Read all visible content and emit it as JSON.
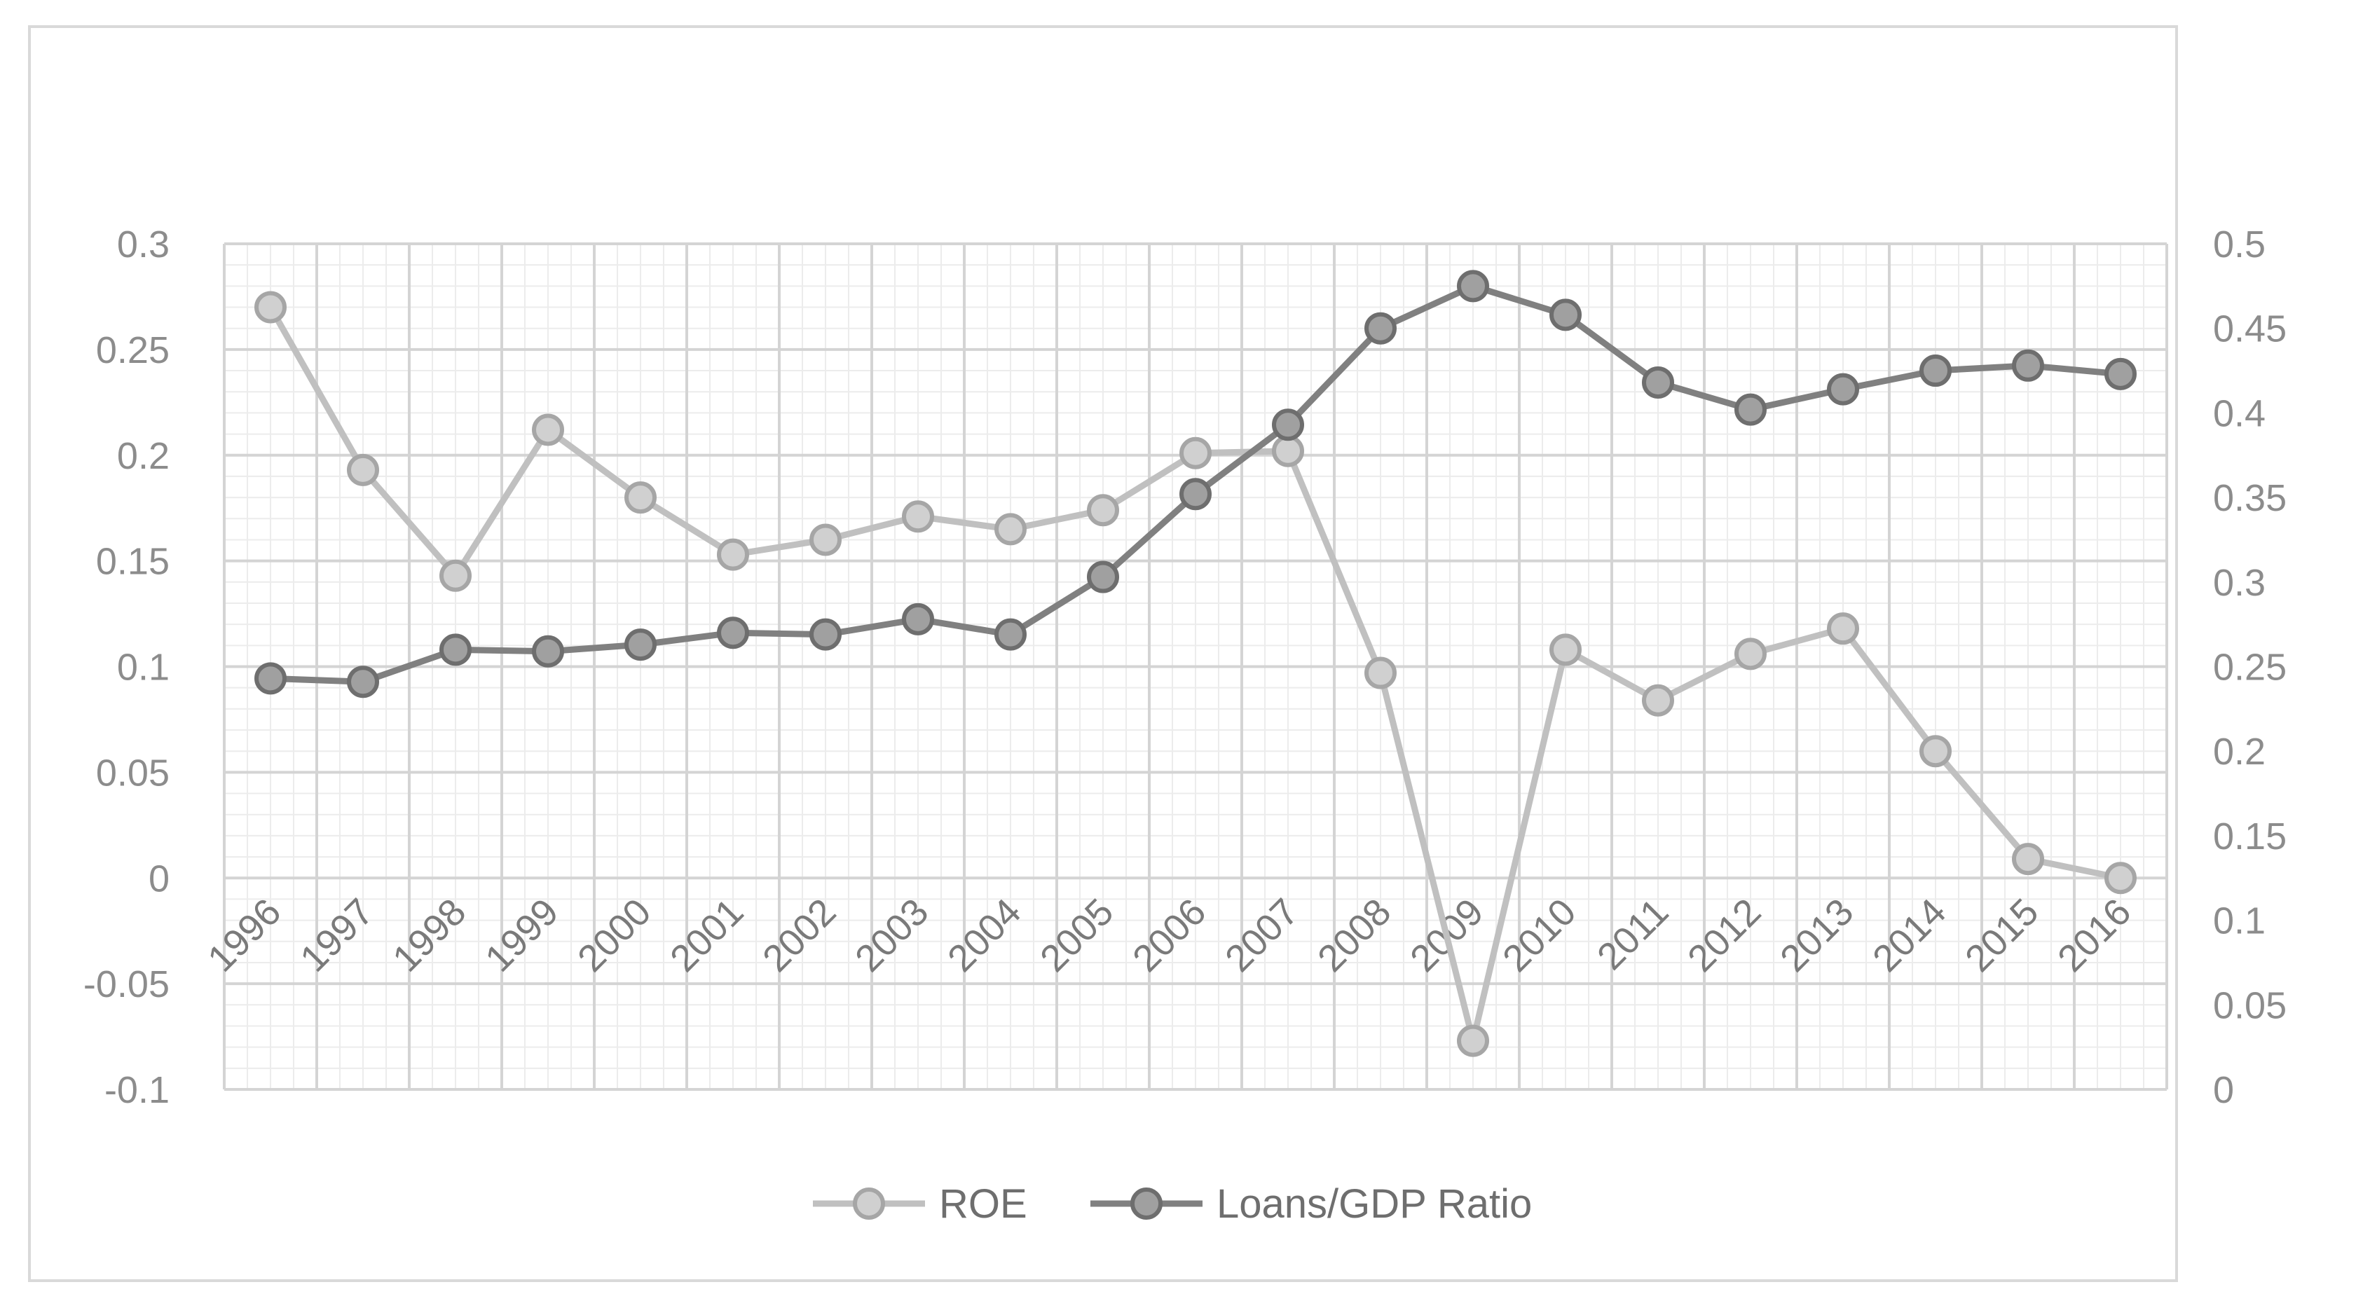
{
  "chart_data": {
    "type": "line",
    "title": "",
    "categories": [
      "1996",
      "1997",
      "1998",
      "1999",
      "2000",
      "2001",
      "2002",
      "2003",
      "2004",
      "2005",
      "2006",
      "2007",
      "2008",
      "2009",
      "2010",
      "2011",
      "2012",
      "2013",
      "2014",
      "2015",
      "2016"
    ],
    "series": [
      {
        "name": "ROE",
        "axis": "left",
        "color": "#c0c0c0",
        "values": [
          0.27,
          0.193,
          0.143,
          0.212,
          0.18,
          0.153,
          0.16,
          0.171,
          0.165,
          0.174,
          0.201,
          0.202,
          0.097,
          -0.077,
          0.108,
          0.084,
          0.106,
          0.118,
          0.06,
          0.009,
          0.0
        ]
      },
      {
        "name": "Loans/GDP Ratio",
        "axis": "right",
        "color": "#808080",
        "values": [
          0.243,
          0.241,
          0.26,
          0.259,
          0.263,
          0.27,
          0.269,
          0.278,
          0.269,
          0.303,
          0.352,
          0.393,
          0.45,
          0.475,
          0.458,
          0.418,
          0.402,
          0.414,
          0.425,
          0.428,
          0.423
        ]
      }
    ],
    "y_left": {
      "lim": [
        -0.1,
        0.3
      ],
      "ticks": [
        "0.3",
        "0.25",
        "0.2",
        "0.15",
        "0.1",
        "0.05",
        "0",
        "-0.05",
        "-0.1"
      ]
    },
    "y_right": {
      "lim": [
        0,
        0.5
      ],
      "ticks": [
        "0.5",
        "0.45",
        "0.4",
        "0.35",
        "0.3",
        "0.25",
        "0.2",
        "0.15",
        "0.1",
        "0.05",
        "0"
      ]
    },
    "xlabel": "",
    "ylabel": "",
    "grid": true,
    "legend": "bottom-center",
    "legend_labels": [
      "ROE",
      "Loans/GDP Ratio"
    ]
  }
}
